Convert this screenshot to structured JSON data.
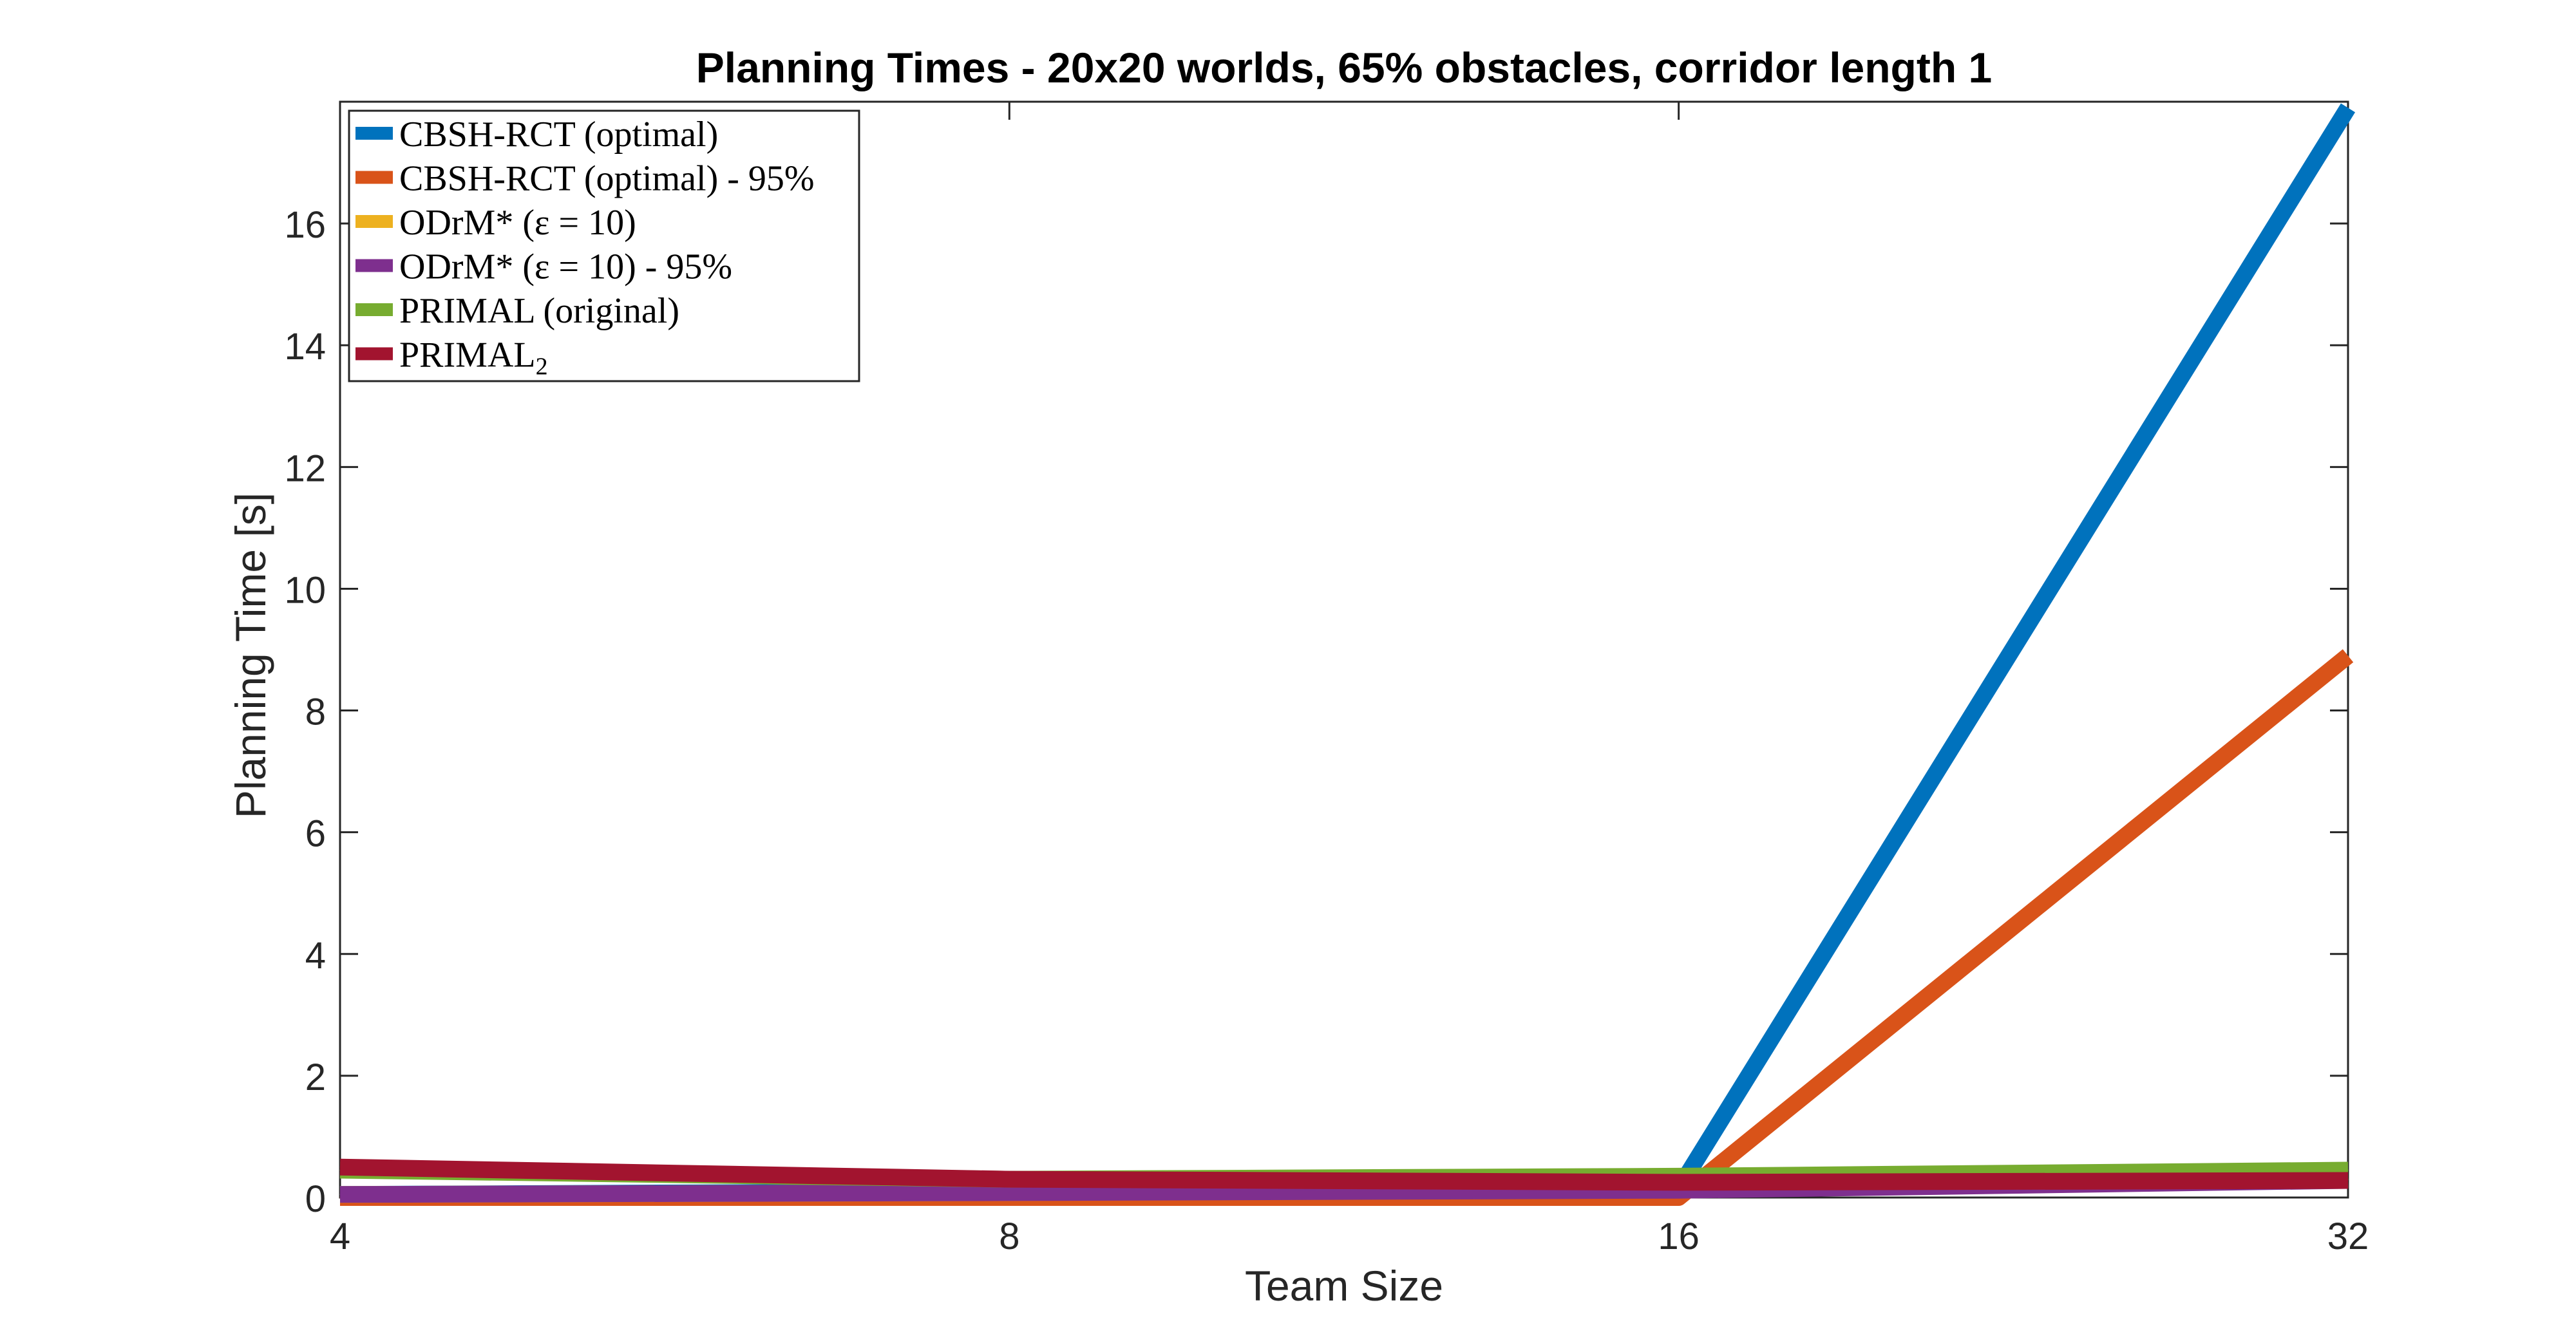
{
  "chart_data": {
    "type": "line",
    "title": "Planning Times - 20x20 worlds, 65% obstacles, corridor length 1",
    "xlabel": "Team Size",
    "ylabel": "Planning Time [s]",
    "x": [
      4,
      8,
      16,
      32
    ],
    "x_ticks": [
      "4",
      "8",
      "16",
      "32"
    ],
    "x_scale": "log2",
    "xlim": [
      4,
      32
    ],
    "ylim": [
      0,
      18
    ],
    "y_ticks": [
      0,
      2,
      4,
      6,
      8,
      10,
      12,
      14,
      16
    ],
    "grid": false,
    "legend_position": "top-left",
    "series": [
      {
        "name": "CBSH-RCT (optimal)",
        "color": "#0072BD",
        "values": [
          0.05,
          0.1,
          0.15,
          17.9
        ]
      },
      {
        "name": "CBSH-RCT (optimal) - 95%",
        "color": "#D95319",
        "values": [
          0.0,
          0.0,
          0.0,
          8.9
        ]
      },
      {
        "name": "ODrM* (ε = 10)",
        "color": "#EDB120",
        "values": [
          0.05,
          0.08,
          0.15,
          0.3
        ]
      },
      {
        "name": "ODrM* (ε = 10) - 95%",
        "color": "#7E2F8E",
        "values": [
          0.05,
          0.08,
          0.12,
          0.28
        ]
      },
      {
        "name": "PRIMAL (original)",
        "color": "#77AC30",
        "values": [
          0.45,
          0.3,
          0.35,
          0.45
        ]
      },
      {
        "name": "PRIMAL2",
        "color": "#A2142F",
        "values": [
          0.5,
          0.3,
          0.25,
          0.28
        ]
      }
    ]
  }
}
